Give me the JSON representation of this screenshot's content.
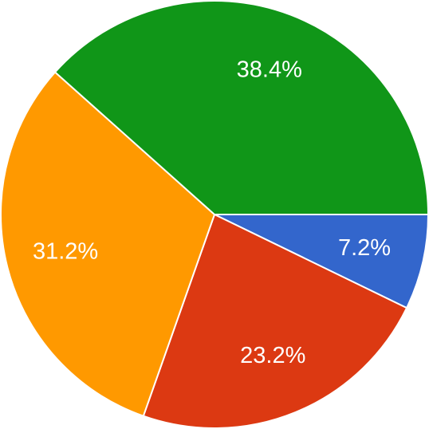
{
  "chart_data": {
    "type": "pie",
    "values": [
      7.2,
      23.2,
      31.2,
      38.4
    ],
    "value_labels": [
      "7.2%",
      "23.2%",
      "31.2%",
      "38.4%"
    ],
    "colors": [
      "#3366cc",
      "#dc3912",
      "#ff9900",
      "#109618"
    ]
  }
}
